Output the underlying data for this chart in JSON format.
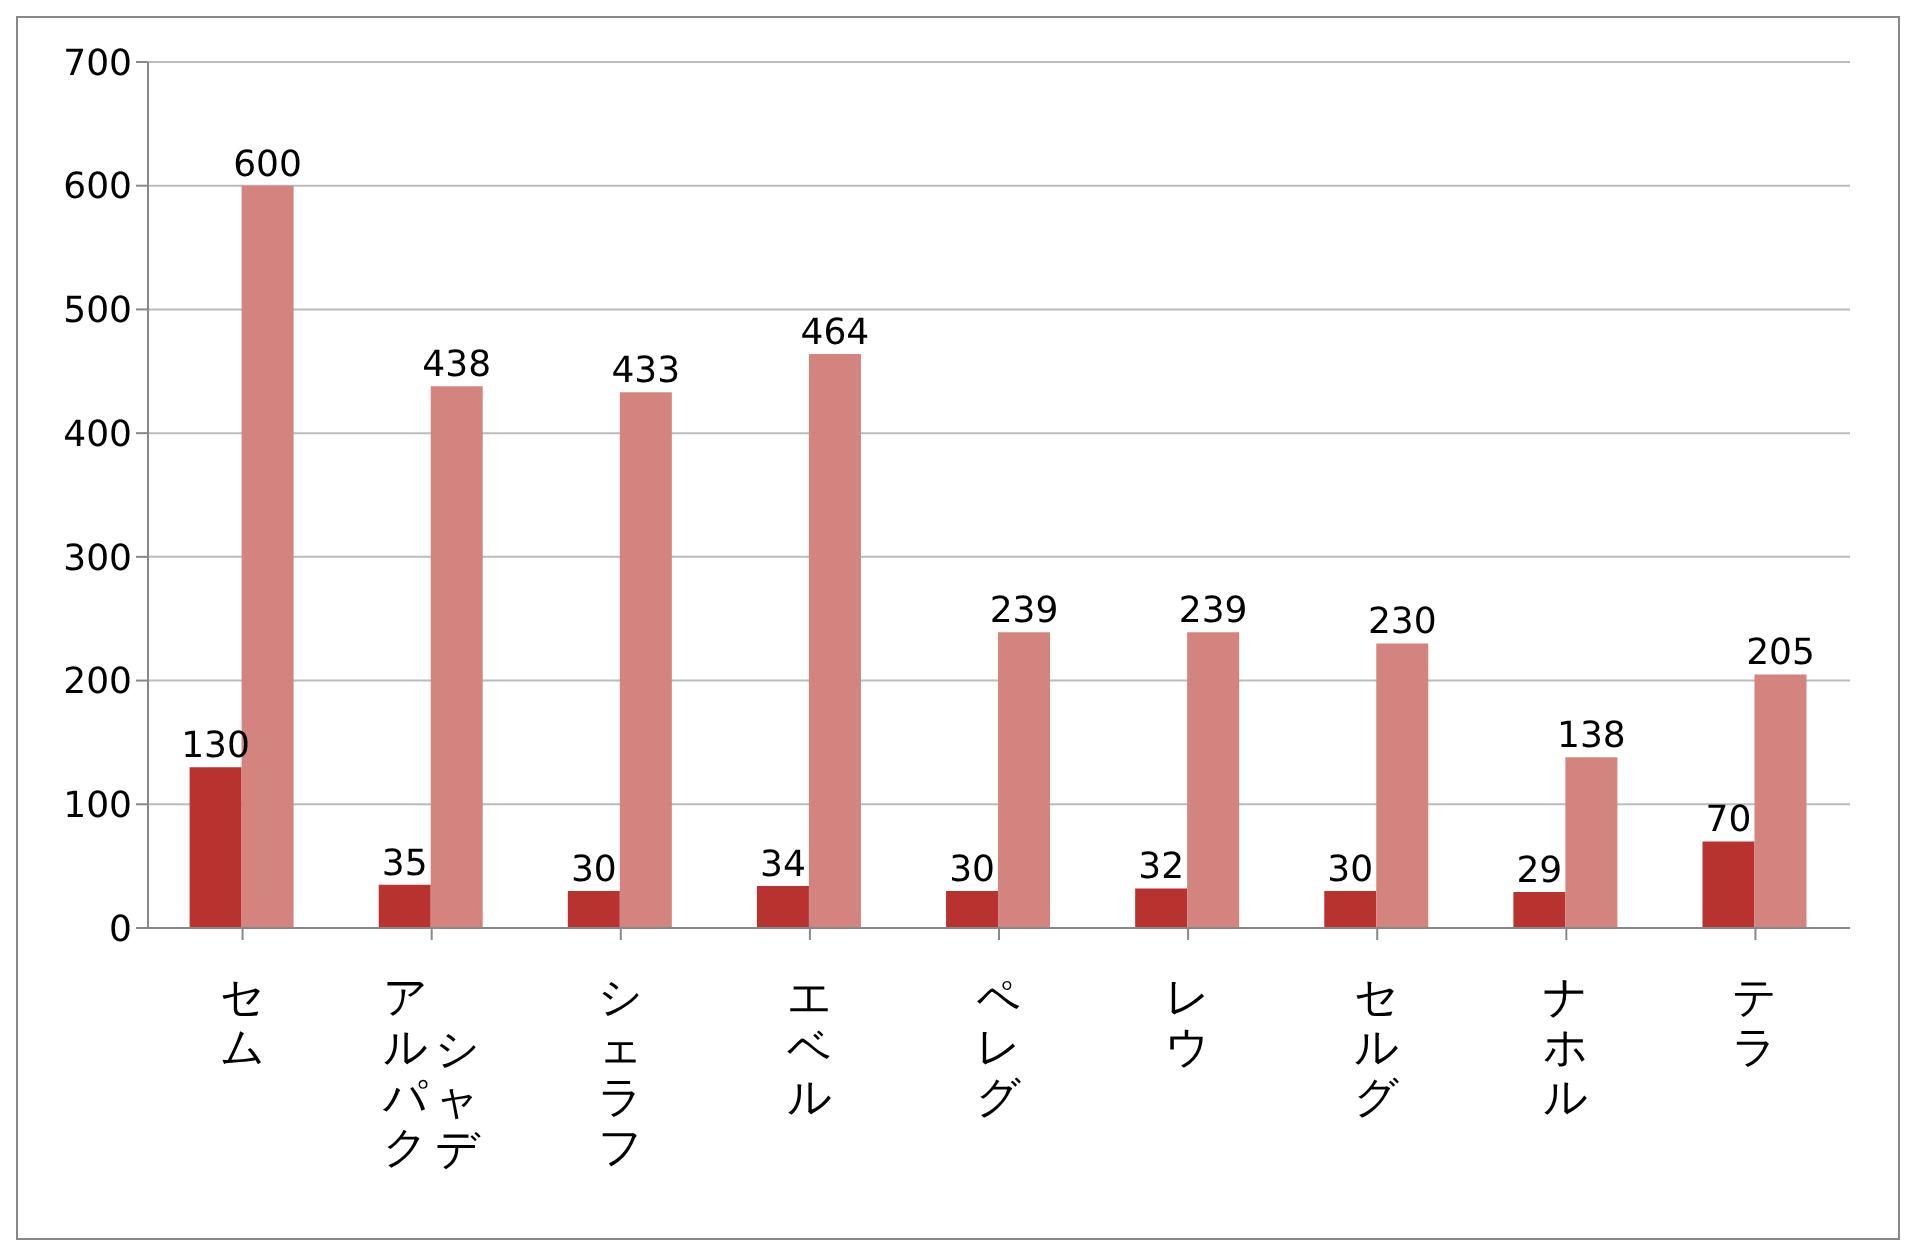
{
  "chart_data": {
    "type": "bar",
    "categories": [
      "セム",
      "アルパクシャデ",
      "シェラフ",
      "エベル",
      "ペレグ",
      "レウ",
      "セルグ",
      "ナホル",
      "テラ"
    ],
    "series": [
      {
        "color": "#b8322f",
        "values": [
          130,
          35,
          30,
          34,
          30,
          32,
          30,
          29,
          70
        ]
      },
      {
        "color": "#d4847f",
        "values": [
          600,
          438,
          433,
          464,
          239,
          239,
          230,
          138,
          205
        ]
      }
    ],
    "ylim": [
      0,
      700
    ],
    "yticks": [
      0,
      100,
      200,
      300,
      400,
      500,
      600,
      700
    ],
    "grid": "y",
    "data_labels": true,
    "legend": false
  }
}
